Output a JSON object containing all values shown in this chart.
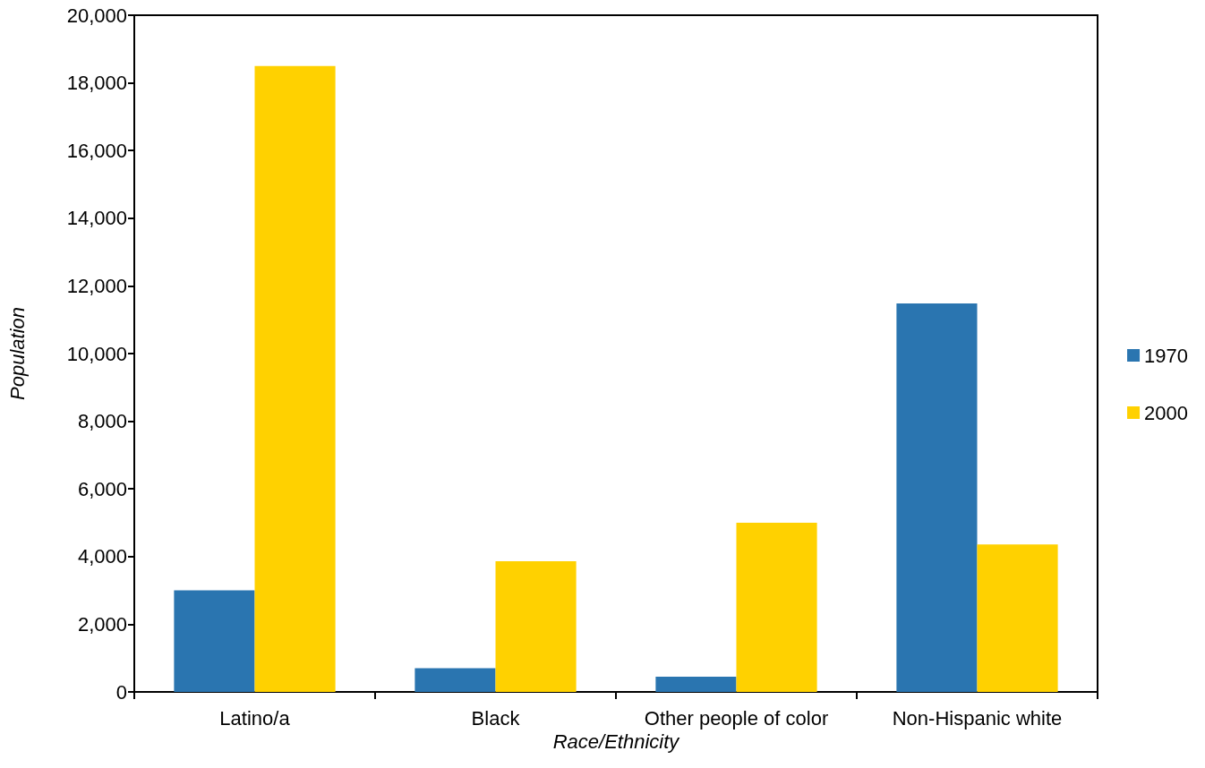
{
  "chart_data": {
    "type": "bar",
    "xlabel": "Race/Ethnicity",
    "ylabel": "Population",
    "categories": [
      "Latino/a",
      "Black",
      "Other people of color",
      "Non-Hispanic white"
    ],
    "series": [
      {
        "name": "1970",
        "color": "#2a75b0",
        "values": [
          3000,
          700,
          450,
          11480
        ]
      },
      {
        "name": "2000",
        "color": "#ffd100",
        "values": [
          18500,
          3860,
          5000,
          4360
        ]
      }
    ],
    "ylim": [
      0,
      20000
    ],
    "yticks": [
      0,
      {
        "value": 2000,
        "label": "2,000"
      },
      {
        "value": 4000,
        "label": "4,000"
      },
      {
        "value": 6000,
        "label": "6,000"
      },
      {
        "value": 8000,
        "label": "8,000"
      },
      {
        "value": 10000,
        "label": "10,000"
      },
      {
        "value": 12000,
        "label": "12,000"
      },
      {
        "value": 14000,
        "label": "14,000"
      },
      {
        "value": 16000,
        "label": "16,000"
      },
      {
        "value": 18000,
        "label": "18,000"
      },
      {
        "value": 20000,
        "label": "20,000"
      }
    ],
    "grid": false,
    "legend": "right"
  }
}
